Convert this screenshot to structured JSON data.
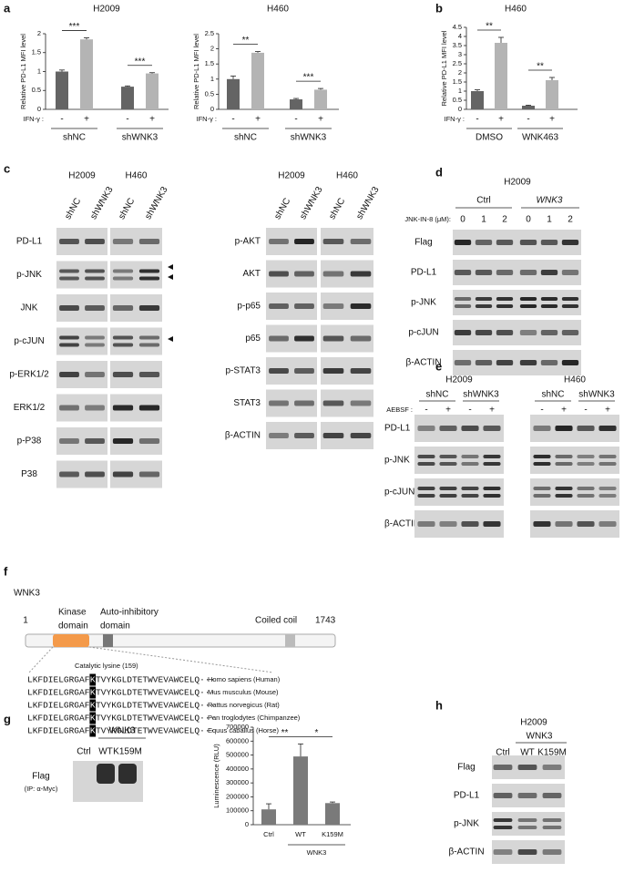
{
  "letters": [
    "a",
    "b",
    "c",
    "d",
    "e",
    "f",
    "g",
    "h"
  ],
  "chart_data": [
    {
      "type": "bar",
      "title": "H2009",
      "y_label": "Relative PD-L1 MFI level",
      "factor_label": "IFN-γ :",
      "categories": [
        "-",
        "+",
        "-",
        "+"
      ],
      "groups": [
        "shNC",
        "shWNK3"
      ],
      "values": [
        1.0,
        1.85,
        0.6,
        0.95
      ],
      "errors": [
        0.04,
        0.04,
        0.02,
        0.02
      ],
      "colors": [
        "#646464",
        "#b4b4b4",
        "#646464",
        "#b4b4b4"
      ],
      "ylim": [
        0,
        2
      ],
      "yticks": [
        0,
        0.5,
        1,
        1.5,
        2
      ],
      "significance": [
        "***",
        "***"
      ]
    },
    {
      "type": "bar",
      "title": "H460",
      "y_label": "Relative PD-L1 MFI level",
      "factor_label": "IFN-γ :",
      "categories": [
        "-",
        "+",
        "-",
        "+"
      ],
      "groups": [
        "shNC",
        "shWNK3"
      ],
      "values": [
        1.0,
        1.87,
        0.33,
        0.65
      ],
      "errors": [
        0.1,
        0.04,
        0.03,
        0.04
      ],
      "colors": [
        "#646464",
        "#b4b4b4",
        "#646464",
        "#b4b4b4"
      ],
      "ylim": [
        0,
        2.5
      ],
      "yticks": [
        0,
        0.5,
        1,
        1.5,
        2,
        2.5
      ],
      "significance": [
        "**",
        "***"
      ]
    },
    {
      "type": "bar",
      "title": "H460",
      "y_label": "Relative PD-L1 MFI level",
      "factor_label": "IFN-γ :",
      "categories": [
        "-",
        "+",
        "-",
        "+"
      ],
      "groups": [
        "DMSO",
        "WNK463"
      ],
      "values": [
        1.0,
        3.65,
        0.2,
        1.6
      ],
      "errors": [
        0.07,
        0.3,
        0.03,
        0.15
      ],
      "colors": [
        "#646464",
        "#b4b4b4",
        "#646464",
        "#b4b4b4"
      ],
      "ylim": [
        0,
        4.5
      ],
      "yticks": [
        0,
        0.5,
        1,
        1.5,
        2,
        2.5,
        3,
        3.5,
        4,
        4.5
      ],
      "significance": [
        "**",
        "**"
      ]
    },
    {
      "type": "bar",
      "y_label": "Luminescence (RLU)",
      "group_label": "WNK3",
      "categories": [
        "Ctrl",
        "WT",
        "K159M"
      ],
      "values": [
        110000,
        490000,
        155000
      ],
      "errors": [
        40000,
        90000,
        8000
      ],
      "colors": [
        "#7a7a7a",
        "#7a7a7a",
        "#7a7a7a"
      ],
      "ylim": [
        0,
        700000
      ],
      "yticks": [
        0,
        100000,
        200000,
        300000,
        400000,
        500000,
        600000,
        700000
      ],
      "significance": [
        "**",
        "*"
      ]
    }
  ],
  "c": {
    "cell_lines": [
      "H2009",
      "H460"
    ],
    "lanes": [
      "shNC",
      "shWNK3"
    ],
    "left_rows": [
      "PD-L1",
      "p-JNK",
      "JNK",
      "p-cJUN",
      "p-ERK1/2",
      "ERK1/2",
      "p-P38",
      "P38"
    ],
    "right_rows": [
      "p-AKT",
      "AKT",
      "p-p65",
      "p65",
      "p-STAT3",
      "STAT3",
      "β-ACTIN"
    ]
  },
  "d": {
    "cell_line": "H2009",
    "groups": [
      "Ctrl",
      "WNK3"
    ],
    "dose_label": "JNK-IN-8 (μM):",
    "doses": [
      0,
      1,
      2,
      0,
      1,
      2
    ],
    "rows": [
      "Flag",
      "PD-L1",
      "p-JNK",
      "p-cJUN",
      "β-ACTIN"
    ]
  },
  "e": {
    "cell_lines": [
      "H2009",
      "H460"
    ],
    "lanes": [
      "shNC",
      "shWNK3"
    ],
    "treatment_label": "AEBSF :",
    "treatment": [
      "-",
      "+"
    ],
    "rows": [
      "PD-L1",
      "p-JNK",
      "p-cJUN",
      "β-ACTIN"
    ]
  },
  "f": {
    "protein": "WNK3",
    "start": "1",
    "end": "1743",
    "domains": [
      [
        "Kinase",
        "domain"
      ],
      [
        "Auto-inhibitory",
        "domain"
      ],
      [
        "Coiled coil"
      ]
    ],
    "site_label": "Catalytic lysine (159)",
    "alignment": [
      {
        "prefix": "LKFDIELGRGAF",
        "residue": "K",
        "suffix": "TVYKGLDTETWVEVAWCELQ···",
        "species": "Homo sapiens (Human)"
      },
      {
        "prefix": "LKFDIELGRGAF",
        "residue": "K",
        "suffix": "TVYKGLDTETWVEVAWCELQ···",
        "species": "Mus musculus (Mouse)"
      },
      {
        "prefix": "LKFDIELGRGAF",
        "residue": "K",
        "suffix": "TVYKGLDTETWVEVAWCELQ···",
        "species": "Rattus norvegicus (Rat)"
      },
      {
        "prefix": "LKFDIELGRGAF",
        "residue": "K",
        "suffix": "TVYKGLDTETWVEVAWCELQ···",
        "species": "Pan troglodytes (Chimpanzee)"
      },
      {
        "prefix": "LKFDIELGRGAF",
        "residue": "K",
        "suffix": "TVYKGLDTETWVEVAWCELQ···",
        "species": "Equus caballus (Horse)"
      }
    ]
  },
  "g": {
    "group": "WNK3",
    "lanes": [
      "Ctrl",
      "WT",
      "K159M"
    ],
    "row": "Flag",
    "ip": "(IP: α-Myc)"
  },
  "h": {
    "cell_line": "H2009",
    "group": "WNK3",
    "lanes": [
      "Ctrl",
      "WT",
      "K159M"
    ],
    "rows": [
      "Flag",
      "PD-L1",
      "p-JNK",
      "β-ACTIN"
    ]
  }
}
